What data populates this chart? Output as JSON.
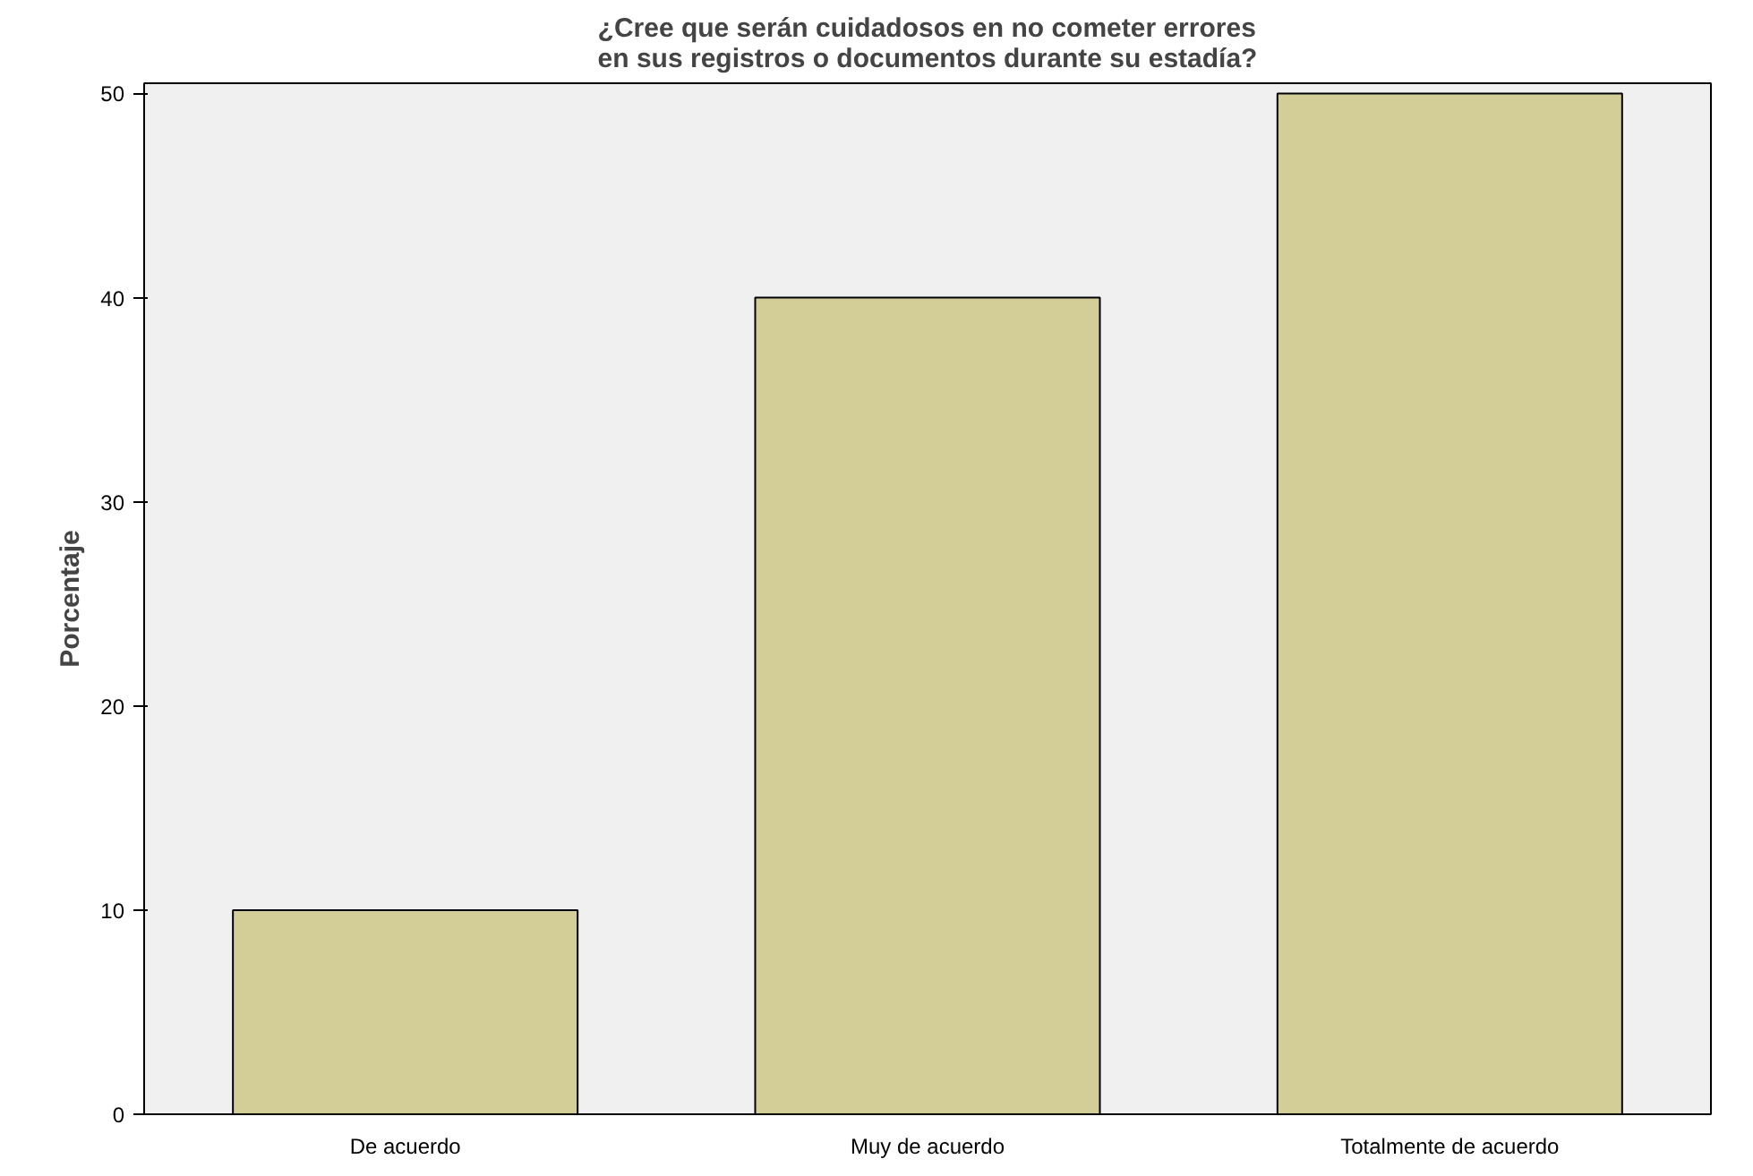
{
  "chart_data": {
    "type": "bar",
    "title": "¿Cree que serán cuidadosos en no cometer errores\nen sus registros o documentos durante su estadía?",
    "ylabel": "Porcentaje",
    "categories": [
      "De acuerdo",
      "Muy de acuerdo",
      "Totalmente de acuerdo"
    ],
    "values": [
      10,
      40,
      50
    ],
    "color": "#d3ce97",
    "ylim": [
      0,
      50.5
    ],
    "yticks": [
      0,
      10,
      20,
      30,
      40,
      50
    ],
    "grid": false
  }
}
